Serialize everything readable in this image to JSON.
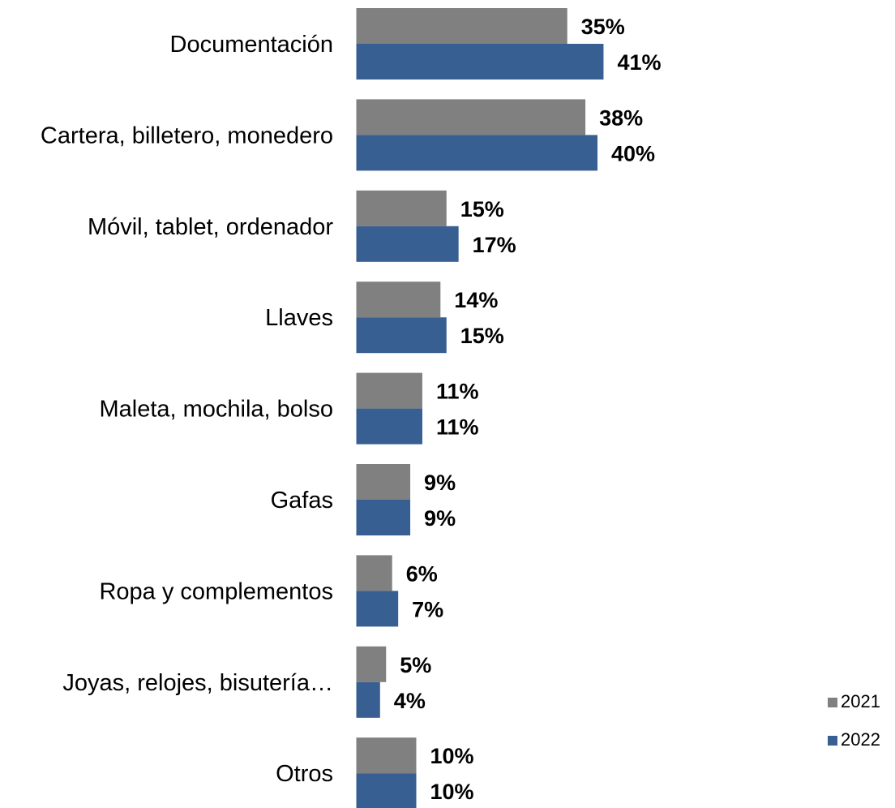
{
  "chart_data": {
    "type": "bar",
    "orientation": "horizontal",
    "categories": [
      "Documentación",
      "Cartera, billetero, monedero",
      "Móvil, tablet, ordenador",
      "Llaves",
      "Maleta, mochila, bolso",
      "Gafas",
      "Ropa y complementos",
      "Joyas, relojes, bisutería…",
      "Otros"
    ],
    "series": [
      {
        "name": "2021",
        "color": "#808080",
        "values": [
          35,
          38,
          15,
          14,
          11,
          9,
          6,
          5,
          10
        ],
        "labels": [
          "35%",
          "38%",
          "15%",
          "14%",
          "11%",
          "9%",
          "6%",
          "5%",
          "10%"
        ]
      },
      {
        "name": "2022",
        "color": "#375F91",
        "values": [
          41,
          40,
          17,
          15,
          11,
          9,
          7,
          4,
          10
        ],
        "labels": [
          "41%",
          "40%",
          "17%",
          "15%",
          "11%",
          "9%",
          "7%",
          "4%",
          "10%"
        ]
      }
    ],
    "xlim": [
      0,
      100
    ],
    "unit": "%",
    "grid": false,
    "legend_position": "bottom-right"
  }
}
